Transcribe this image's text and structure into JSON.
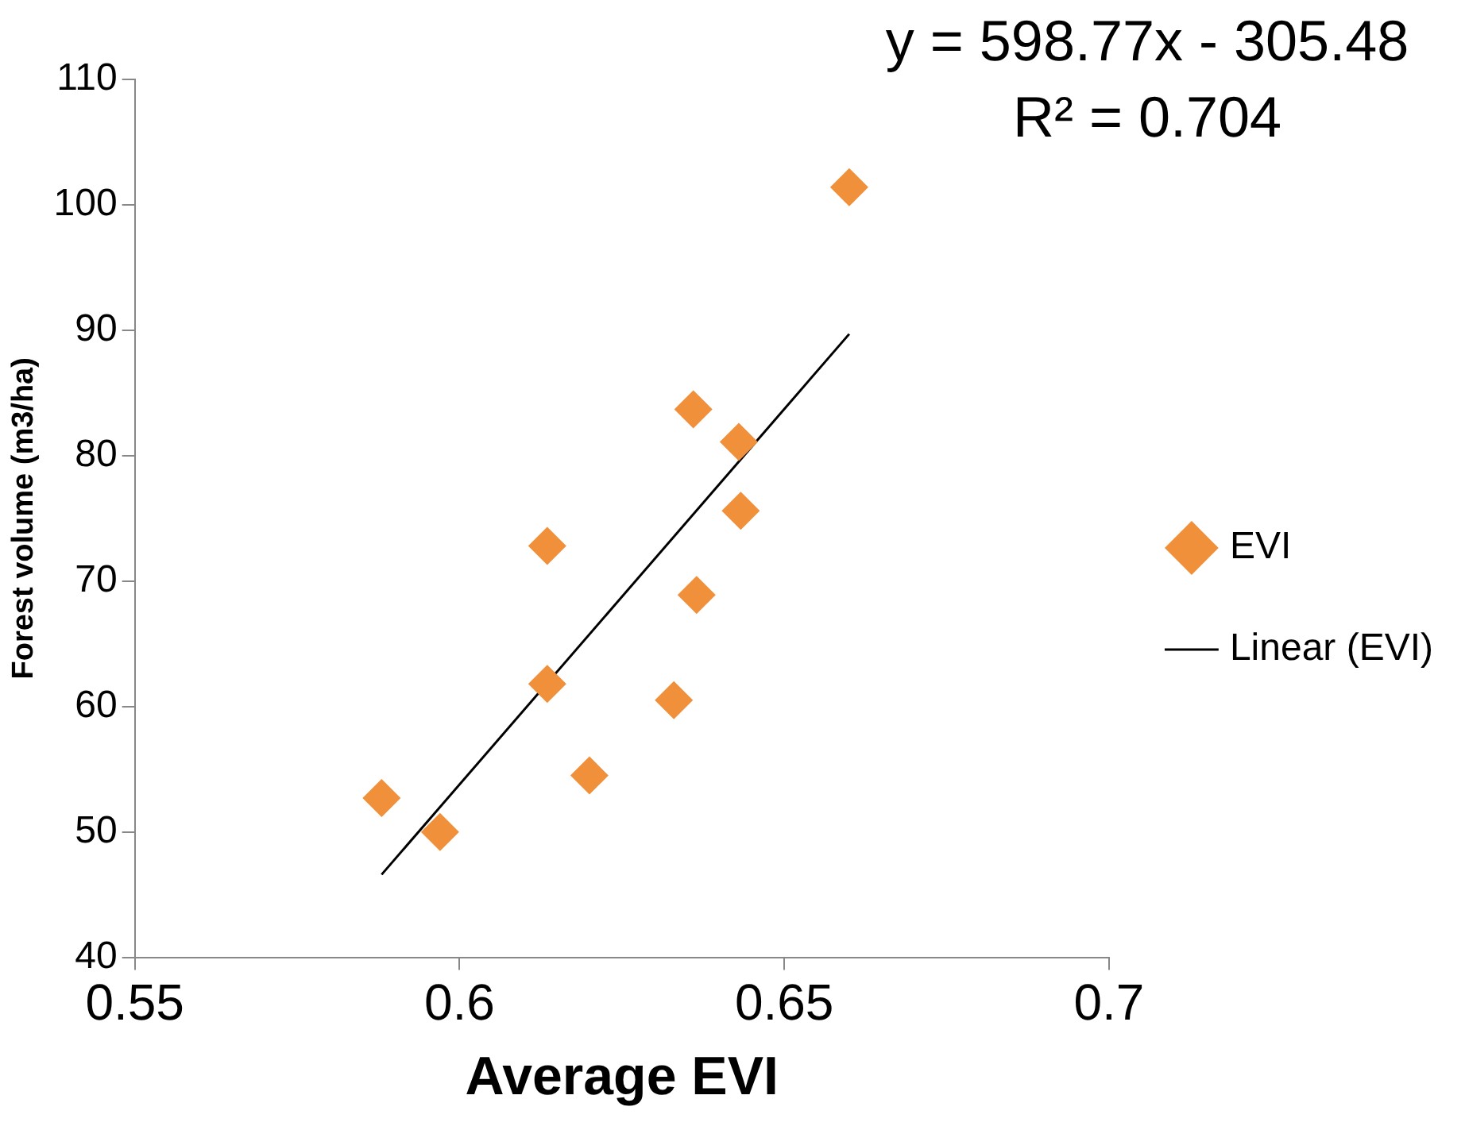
{
  "chart_data": {
    "type": "scatter",
    "xlabel": "Average EVI",
    "ylabel": "Forest volume (m3/ha)",
    "annotations": [
      "y = 598.77x - 305.48",
      "R² = 0.704"
    ],
    "xlim": [
      0.55,
      0.7
    ],
    "xticks": [
      0.55,
      0.6,
      0.65,
      0.7
    ],
    "ylim": [
      40,
      110
    ],
    "yticks": [
      40,
      50,
      60,
      70,
      80,
      90,
      100,
      110
    ],
    "grid": false,
    "legend": "right",
    "marker": "diamond",
    "series": [
      {
        "name": "EVI",
        "type": "scatter",
        "color": "#f0903a",
        "x": [
          0.588,
          0.597,
          0.6135,
          0.6135,
          0.62,
          0.633,
          0.636,
          0.6365,
          0.643,
          0.6433,
          0.66
        ],
        "values": [
          52.7,
          50.0,
          72.8,
          61.8,
          54.5,
          60.5,
          83.7,
          68.9,
          81.1,
          75.6,
          101.4
        ]
      },
      {
        "name": "Linear (EVI)",
        "type": "line",
        "color": "#000000",
        "marker": "none",
        "x": [
          0.588,
          0.66
        ],
        "values": [
          46.6,
          89.7
        ]
      }
    ]
  }
}
